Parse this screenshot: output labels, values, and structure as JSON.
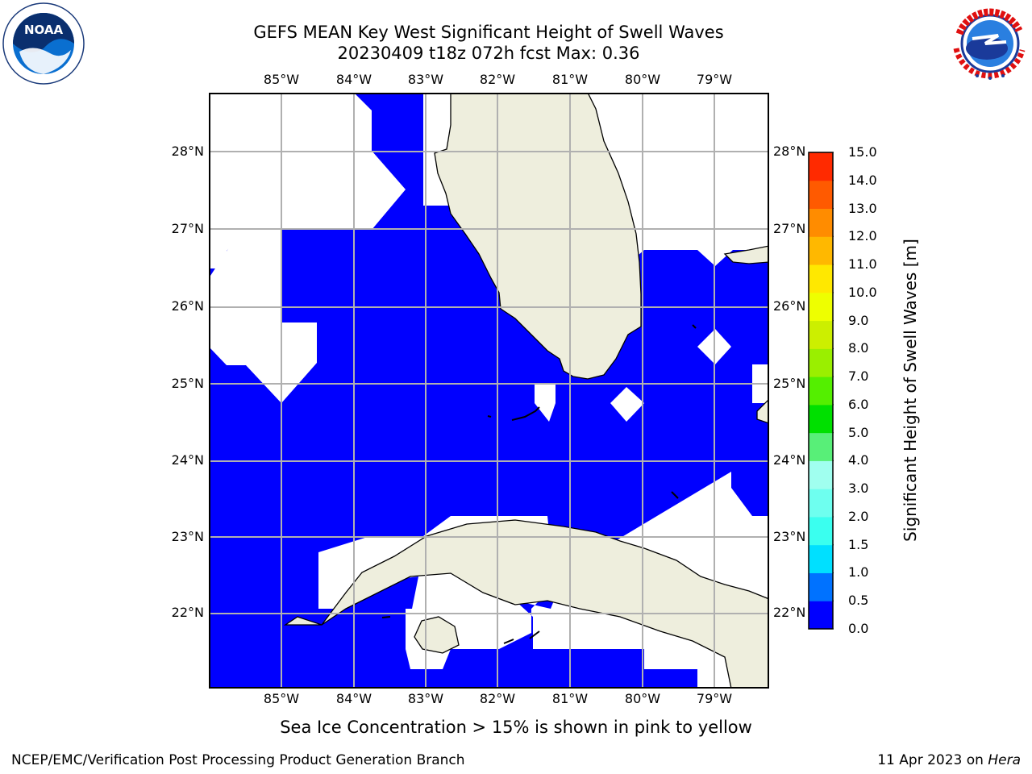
{
  "header": {
    "title_line1": "GEFS MEAN Key West Significant Height of Swell Waves",
    "title_line2": "20230409 t18z 072h fcst   Max: 0.36"
  },
  "logos": {
    "left": {
      "name": "noaa-logo",
      "text": "NOAA",
      "ring_text": "NATIONAL OCEANIC AND ATMOSPHERIC ADMINISTRATION · U.S. DEPARTMENT OF COMMERCE"
    },
    "right": {
      "name": "nws-logo",
      "ring_text": "NATIONAL WEATHER SERVICE"
    }
  },
  "map": {
    "lon_labels": [
      "85°W",
      "84°W",
      "83°W",
      "82°W",
      "81°W",
      "80°W",
      "79°W"
    ],
    "lat_labels": [
      "28°N",
      "27°N",
      "26°N",
      "25°N",
      "24°N",
      "23°N",
      "22°N"
    ],
    "colors": {
      "ocean_low": "#0000ff",
      "land": "#eeeedd",
      "no_data": "#ffffff",
      "grid": "#b0b0b0"
    }
  },
  "colorbar": {
    "label": "Significant Height of Swell Waves [m]",
    "ticks": [
      "0.0",
      "0.5",
      "1.0",
      "1.5",
      "2.0",
      "3.0",
      "4.0",
      "5.0",
      "6.0",
      "7.0",
      "8.0",
      "9.0",
      "10.0",
      "11.0",
      "12.0",
      "13.0",
      "14.0",
      "15.0"
    ],
    "colors": [
      "#0000ff",
      "#0072ff",
      "#00e0ff",
      "#3affef",
      "#6effef",
      "#a0ffef",
      "#58ef78",
      "#00e000",
      "#54ef00",
      "#9aef00",
      "#ccef00",
      "#eeff00",
      "#ffe800",
      "#ffb800",
      "#ff8c00",
      "#ff5a00",
      "#ff2a00",
      "#ff0000"
    ]
  },
  "subtitle": "Sea Ice Concentration > 15% is shown in pink to yellow",
  "footer": {
    "left": "NCEP/EMC/Verification Post Processing Product Generation Branch",
    "right_date": "11 Apr 2023 on ",
    "right_host": "Hera"
  }
}
